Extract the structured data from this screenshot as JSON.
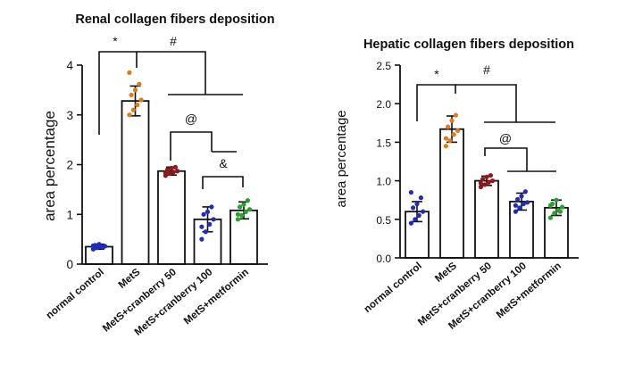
{
  "chart_data": [
    {
      "type": "bar",
      "title": "Renal collagen fibers deposition",
      "xlabel": "",
      "ylabel": "area percentage",
      "ylim": [
        0,
        4
      ],
      "yticks": [
        "0",
        "1",
        "2",
        "3",
        "4"
      ],
      "categories": [
        "normal control",
        "MetS",
        "MetS+cranberry 50",
        "MetS+cranberry 100",
        "MetS+metformin"
      ],
      "values": [
        0.35,
        3.28,
        1.87,
        0.9,
        1.08
      ],
      "errors": [
        0.05,
        0.3,
        0.08,
        0.25,
        0.17
      ],
      "point_colors": [
        "#1f2db8",
        "#e07a1a",
        "#8b1a1a",
        "#1f2db8",
        "#2ca02c"
      ],
      "points": [
        [
          0.3,
          0.33,
          0.35,
          0.36,
          0.38,
          0.4,
          0.34,
          0.37
        ],
        [
          3.0,
          3.1,
          3.2,
          3.3,
          3.4,
          3.5,
          3.62,
          3.85
        ],
        [
          1.78,
          1.82,
          1.85,
          1.87,
          1.9,
          1.93,
          1.95,
          1.83
        ],
        [
          0.5,
          0.65,
          0.8,
          0.9,
          1.0,
          1.05,
          1.15,
          0.75
        ],
        [
          0.9,
          0.98,
          1.05,
          1.1,
          1.15,
          1.2,
          1.28,
          1.0
        ]
      ],
      "annotations": [
        "*",
        "#",
        "@",
        "&"
      ]
    },
    {
      "type": "bar",
      "title": "Hepatic collagen fibers deposition",
      "xlabel": "",
      "ylabel": "area percentage",
      "ylim": [
        0,
        2.5
      ],
      "yticks": [
        "0.0",
        "0.5",
        "1.0",
        "1.5",
        "2.0",
        "2.5"
      ],
      "categories": [
        "normal control",
        "MetS",
        "MetS+cranberry 50",
        "MetS+cranberry 100",
        "MetS+metformin"
      ],
      "values": [
        0.6,
        1.67,
        1.0,
        0.73,
        0.65
      ],
      "errors": [
        0.13,
        0.17,
        0.06,
        0.11,
        0.1
      ],
      "point_colors": [
        "#1f2db8",
        "#e07a1a",
        "#8b1a1a",
        "#1f2db8",
        "#2ca02c"
      ],
      "points": [
        [
          0.45,
          0.5,
          0.55,
          0.6,
          0.65,
          0.7,
          0.78,
          0.85
        ],
        [
          1.45,
          1.52,
          1.6,
          1.65,
          1.7,
          1.78,
          1.85,
          1.55
        ],
        [
          0.92,
          0.95,
          0.98,
          1.0,
          1.02,
          1.05,
          1.07,
          0.97
        ],
        [
          0.6,
          0.65,
          0.7,
          0.72,
          0.76,
          0.8,
          0.86,
          0.68
        ],
        [
          0.52,
          0.58,
          0.62,
          0.66,
          0.7,
          0.75,
          0.6,
          0.68
        ]
      ],
      "annotations": [
        "*",
        "#",
        "@"
      ]
    }
  ]
}
